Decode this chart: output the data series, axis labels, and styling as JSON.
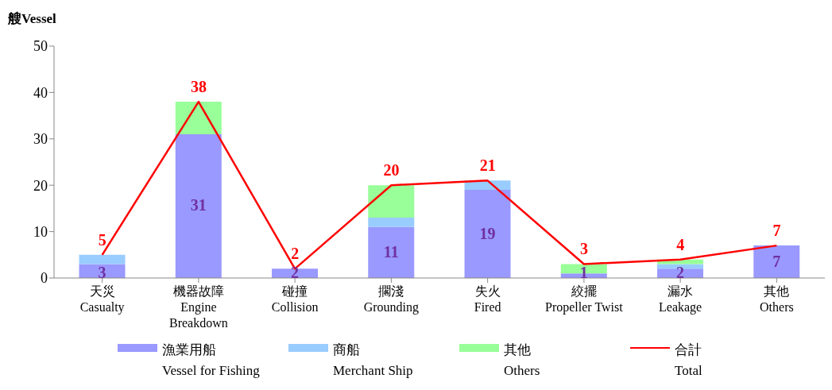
{
  "chart_data": {
    "type": "bar",
    "ylabel": "艘Vessel",
    "categories": [
      "天災\nCasualty",
      "機器故障\nEngine\nBreakdown",
      "碰撞\nCollision",
      "擱淺\nGrounding",
      "失火\nFired",
      "絞擺\nPropeller Twist",
      "漏水\nLeakage",
      "其他\nOthers"
    ],
    "series": [
      {
        "name": "漁業用船\nVessel for Fishing",
        "color": "#9999ff",
        "values": [
          3,
          31,
          2,
          11,
          19,
          1,
          2,
          7
        ],
        "value_labels": [
          "3",
          "31",
          "2",
          "11",
          "19",
          "1",
          "2",
          "7"
        ]
      },
      {
        "name": "商船\nMerchant Ship",
        "color": "#99ccff",
        "values": [
          2,
          0,
          0,
          2,
          2,
          0,
          1,
          0
        ]
      },
      {
        "name": "其他\nOthers",
        "color": "#99ff99",
        "values": [
          0,
          7,
          0,
          7,
          0,
          2,
          1,
          0
        ]
      },
      {
        "name": "合計\nTotal",
        "type": "line",
        "color": "#ff0000",
        "values": [
          5,
          38,
          2,
          20,
          21,
          3,
          4,
          7
        ],
        "value_labels": [
          "5",
          "38",
          "2",
          "20",
          "21",
          "3",
          "4",
          "7"
        ]
      }
    ],
    "stacked": true,
    "ylim": [
      0,
      50
    ],
    "yticks": [
      0,
      10,
      20,
      30,
      40,
      50
    ],
    "grid": false,
    "legend": "bottom",
    "marker": "none"
  }
}
